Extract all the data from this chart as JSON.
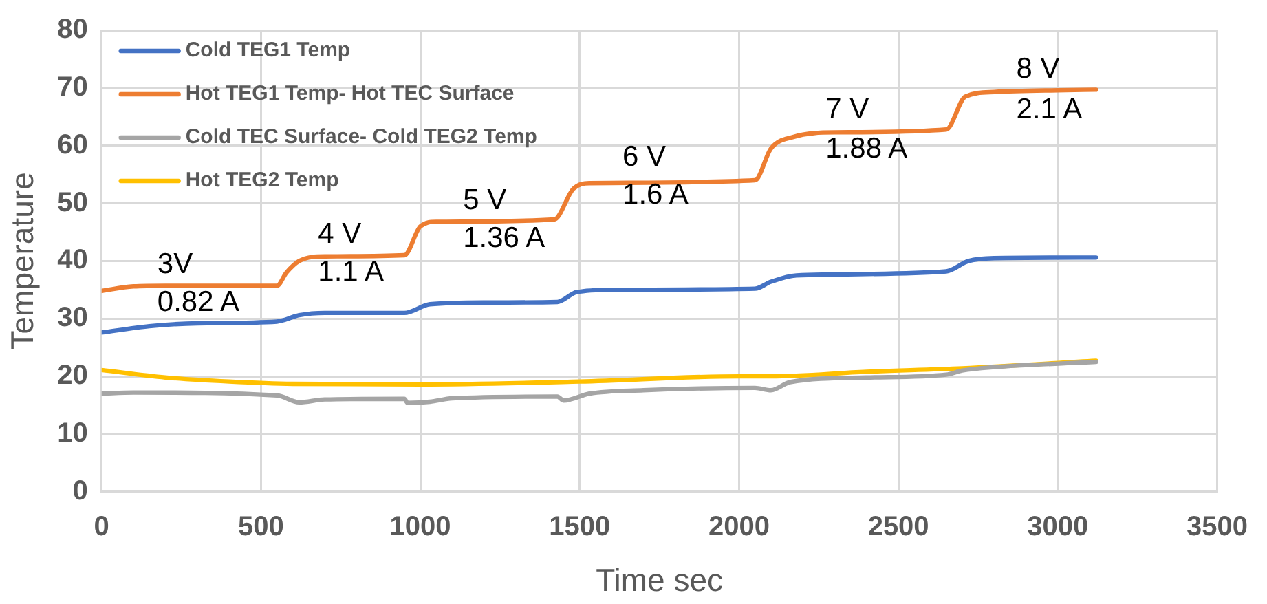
{
  "chart_data": {
    "type": "line",
    "xlabel": "Time sec",
    "ylabel": "Temperature",
    "xlim": [
      0,
      3500
    ],
    "xticks": [
      0,
      500,
      1000,
      1500,
      2000,
      2500,
      3000,
      3500
    ],
    "ylim": [
      0,
      80
    ],
    "yticks": [
      0,
      10,
      20,
      30,
      40,
      50,
      60,
      70,
      80
    ],
    "grid": true,
    "legend": "top left",
    "marker": "none",
    "line_style": "solid",
    "series": [
      {
        "name": "Cold TEG1 Temp",
        "color": "#4472c4",
        "x": [
          0,
          150,
          300,
          550,
          620,
          700,
          950,
          1030,
          1200,
          1430,
          1490,
          1600,
          2050,
          2100,
          2180,
          2650,
          2720,
          2800,
          3120
        ],
        "values": [
          27.6,
          28.7,
          29.2,
          29.5,
          30.6,
          31,
          31,
          32.5,
          32.8,
          32.9,
          34.6,
          35,
          35.2,
          36.4,
          37.5,
          38.2,
          40,
          40.5,
          40.6
        ]
      },
      {
        "name": "Hot TEG1 Temp- Hot TEC Surface",
        "color": "#ed7d31",
        "x": [
          0,
          100,
          200,
          550,
          580,
          620,
          700,
          950,
          1000,
          1050,
          1420,
          1480,
          1530,
          2050,
          2100,
          2170,
          2300,
          2650,
          2710,
          2800,
          3000,
          3120
        ],
        "values": [
          34.8,
          35.6,
          35.7,
          35.7,
          38,
          40,
          40.8,
          41,
          46,
          46.8,
          47.2,
          52.5,
          53.5,
          54,
          59.5,
          61.5,
          62.3,
          62.8,
          68.5,
          69.3,
          69.6,
          69.7
        ]
      },
      {
        "name": "Cold TEC Surface- Cold TEG2 Temp",
        "color": "#a5a5a5",
        "x": [
          0,
          100,
          550,
          620,
          700,
          950,
          960,
          1030,
          1100,
          1430,
          1450,
          1530,
          1700,
          2050,
          2100,
          2160,
          2400,
          2650,
          2700,
          2800,
          3120
        ],
        "values": [
          17,
          17.2,
          16.7,
          15.5,
          16,
          16.1,
          15.4,
          15.6,
          16.2,
          16.5,
          15.8,
          17,
          17.6,
          18,
          17.6,
          19,
          19.8,
          20.3,
          21,
          21.6,
          22.5
        ]
      },
      {
        "name": "Hot TEG2 Temp",
        "color": "#ffc000",
        "x": [
          0,
          200,
          400,
          600,
          1000,
          1500,
          2000,
          2100,
          2400,
          2700,
          3120
        ],
        "values": [
          21.1,
          19.8,
          19.1,
          18.7,
          18.6,
          19.1,
          20,
          20,
          20.8,
          21.4,
          22.7
        ]
      }
    ],
    "annotations": [
      "3V",
      "0.82 A",
      "4 V",
      "1.1 A",
      "5 V",
      "1.36 A",
      "6 V",
      "1.6 A",
      "7 V",
      "1.88 A",
      "8 V",
      "2.1 A"
    ]
  }
}
